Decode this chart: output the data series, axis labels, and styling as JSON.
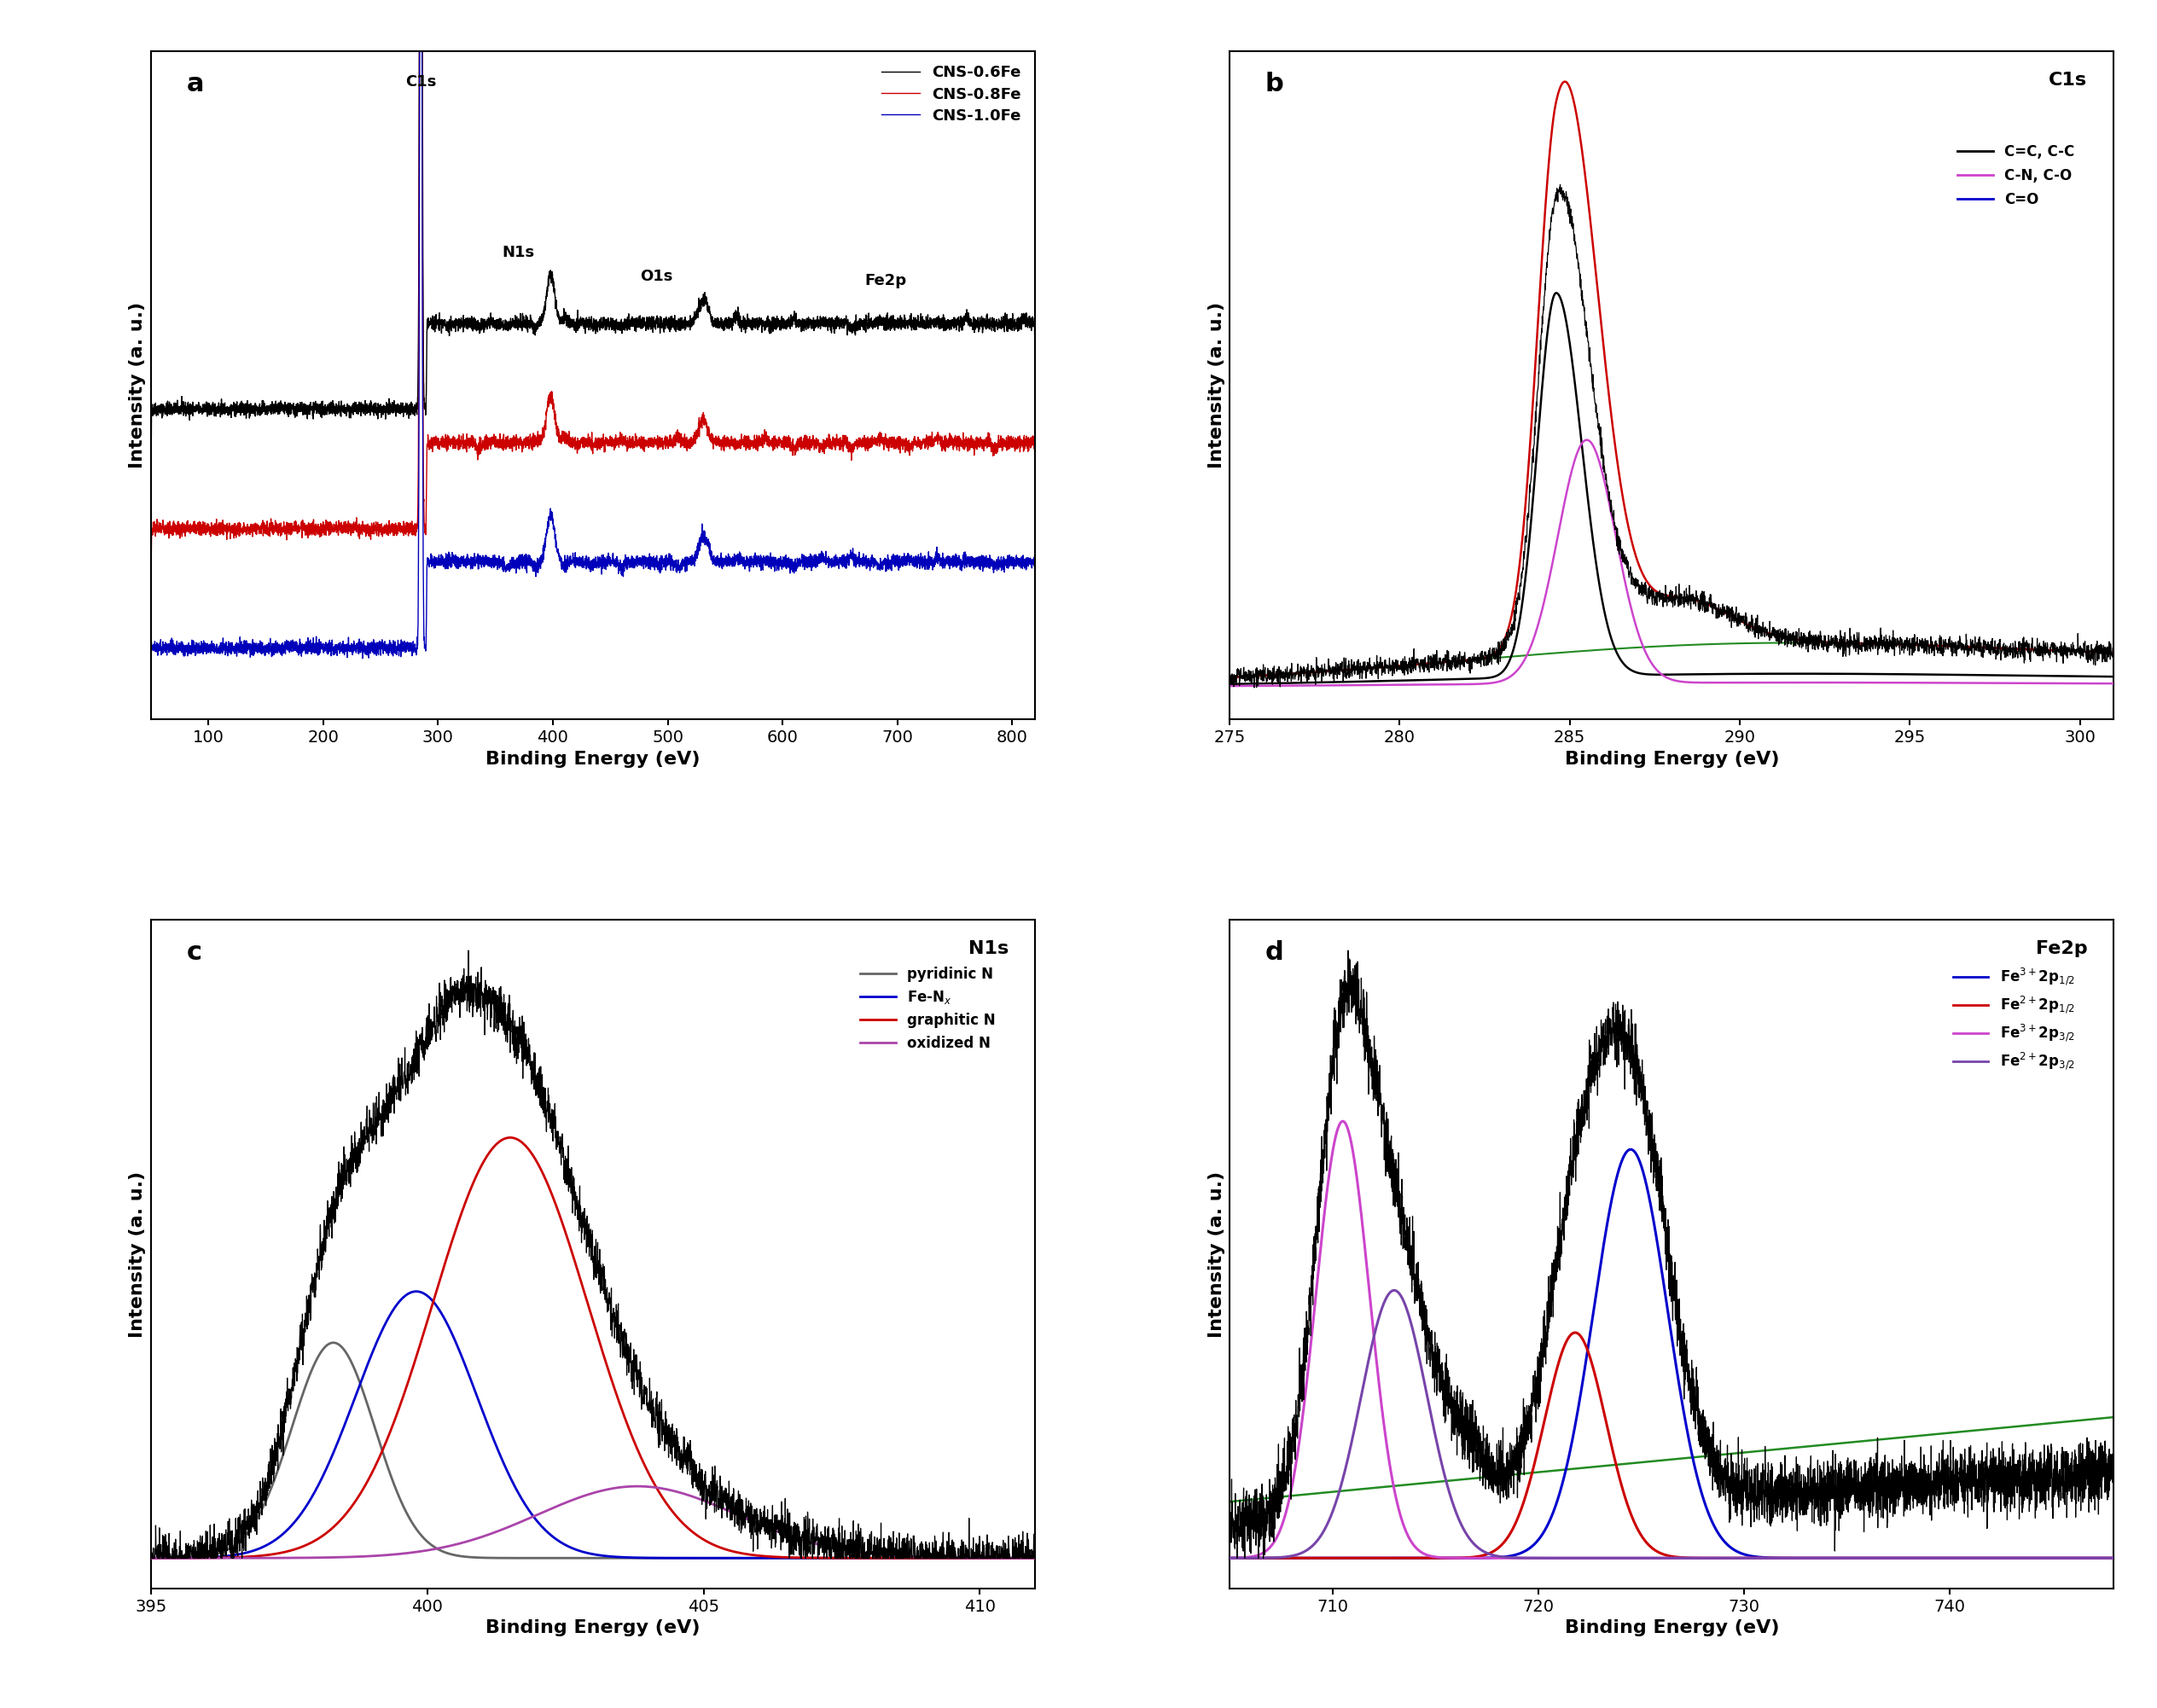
{
  "panel_a": {
    "label": "a",
    "xlabel": "Binding Energy (eV)",
    "ylabel": "Intensity (a. u.)",
    "xlim": [
      50,
      820
    ],
    "xticks": [
      100,
      200,
      300,
      400,
      500,
      600,
      700,
      800
    ],
    "lines": [
      {
        "label": "CNS-0.6Fe",
        "color": "#000000",
        "base": 0.55,
        "c1s_amp": 2.5
      },
      {
        "label": "CNS-0.8Fe",
        "color": "#cc0000",
        "base": 0.3,
        "c1s_amp": 2.5
      },
      {
        "label": "CNS-1.0Fe",
        "color": "#0000bb",
        "base": 0.05,
        "c1s_amp": 2.5
      }
    ]
  },
  "panel_b": {
    "label": "b",
    "xlabel": "Binding Energy (eV)",
    "ylabel": "Intensity (a. u.)",
    "xlim": [
      275,
      301
    ],
    "xticks": [
      275,
      280,
      285,
      290,
      295,
      300
    ],
    "title": "C1s"
  },
  "panel_c": {
    "label": "c",
    "xlabel": "Binding Energy (eV)",
    "ylabel": "Intensity (a. u.)",
    "xlim": [
      395,
      411
    ],
    "xticks": [
      395,
      400,
      405,
      410
    ],
    "title": "N1s"
  },
  "panel_d": {
    "label": "d",
    "xlabel": "Binding Energy (eV)",
    "ylabel": "Intensity (a. u.)",
    "xlim": [
      705,
      748
    ],
    "xticks": [
      710,
      720,
      730,
      740
    ],
    "title": "Fe2p"
  }
}
